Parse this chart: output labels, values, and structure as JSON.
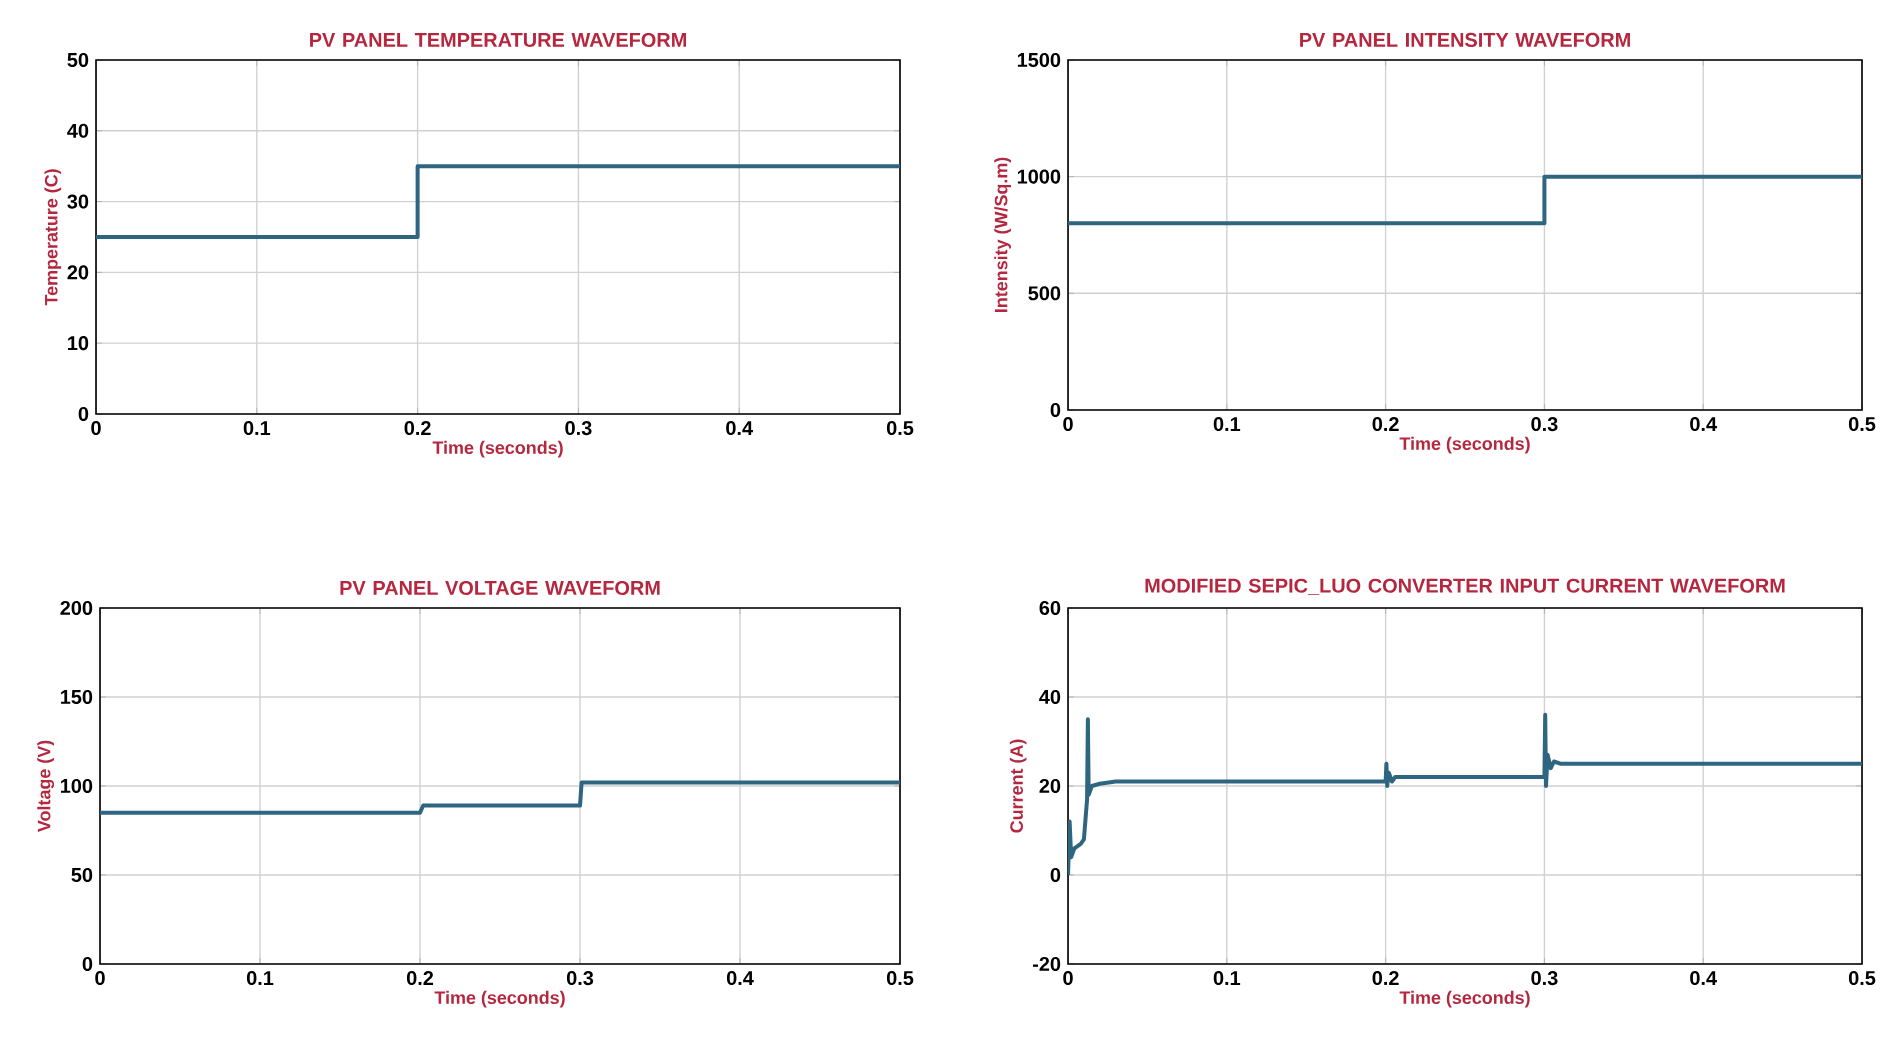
{
  "chart_data": [
    {
      "type": "line",
      "title": "PV PANEL TEMPERATURE WAVEFORM",
      "xlabel": "Time (seconds)",
      "ylabel": "Temperature (C)",
      "x": [
        0,
        0.2,
        0.2,
        0.5
      ],
      "values": [
        25,
        25,
        35,
        35
      ],
      "color": "#2e6580",
      "xlim": [
        0,
        0.5
      ],
      "ylim": [
        0,
        50
      ],
      "xticks": [
        0,
        0.1,
        0.2,
        0.3,
        0.4,
        0.5
      ],
      "yticks": [
        0,
        10,
        20,
        30,
        40,
        50
      ],
      "grid": true
    },
    {
      "type": "line",
      "title": "PV PANEL INTENSITY WAVEFORM",
      "xlabel": "Time (seconds)",
      "ylabel": "Intensity (W/Sq.m)",
      "x": [
        0,
        0.3,
        0.3,
        0.5
      ],
      "values": [
        800,
        800,
        1000,
        1000
      ],
      "color": "#2e6580",
      "xlim": [
        0,
        0.5
      ],
      "ylim": [
        0,
        1500
      ],
      "xticks": [
        0,
        0.1,
        0.2,
        0.3,
        0.4,
        0.5
      ],
      "yticks": [
        0,
        500,
        1000,
        1500
      ],
      "grid": true
    },
    {
      "type": "line",
      "title": "PV PANEL VOLTAGE WAVEFORM",
      "xlabel": "Time (seconds)",
      "ylabel": "Voltage (V)",
      "x": [
        0,
        0.2,
        0.202,
        0.3,
        0.301,
        0.5
      ],
      "values": [
        85,
        85,
        89,
        89,
        102,
        102
      ],
      "color": "#2e6580",
      "xlim": [
        0,
        0.5
      ],
      "ylim": [
        0,
        200
      ],
      "xticks": [
        0,
        0.1,
        0.2,
        0.3,
        0.4,
        0.5
      ],
      "yticks": [
        0,
        50,
        100,
        150,
        200
      ],
      "grid": true
    },
    {
      "type": "line",
      "title": "MODIFIED SEPIC_LUO CONVERTER INPUT CURRENT WAVEFORM",
      "xlabel": "Time (seconds)",
      "ylabel": "Current (A)",
      "x": [
        0,
        0.001,
        0.002,
        0.004,
        0.008,
        0.01,
        0.012,
        0.0125,
        0.013,
        0.015,
        0.02,
        0.03,
        0.2,
        0.2005,
        0.201,
        0.202,
        0.204,
        0.206,
        0.3,
        0.3005,
        0.301,
        0.302,
        0.304,
        0.306,
        0.31,
        0.5
      ],
      "values": [
        0,
        12,
        4,
        6,
        7,
        8,
        17,
        35,
        18,
        20,
        20.5,
        21,
        21,
        25,
        20,
        23,
        21,
        22,
        22,
        36,
        20,
        27,
        24,
        25.5,
        25,
        25
      ],
      "color": "#2e6580",
      "xlim": [
        0,
        0.5
      ],
      "ylim": [
        -20,
        60
      ],
      "xticks": [
        0,
        0.1,
        0.2,
        0.3,
        0.4,
        0.5
      ],
      "yticks": [
        -20,
        0,
        20,
        40,
        60
      ],
      "grid": true
    }
  ]
}
